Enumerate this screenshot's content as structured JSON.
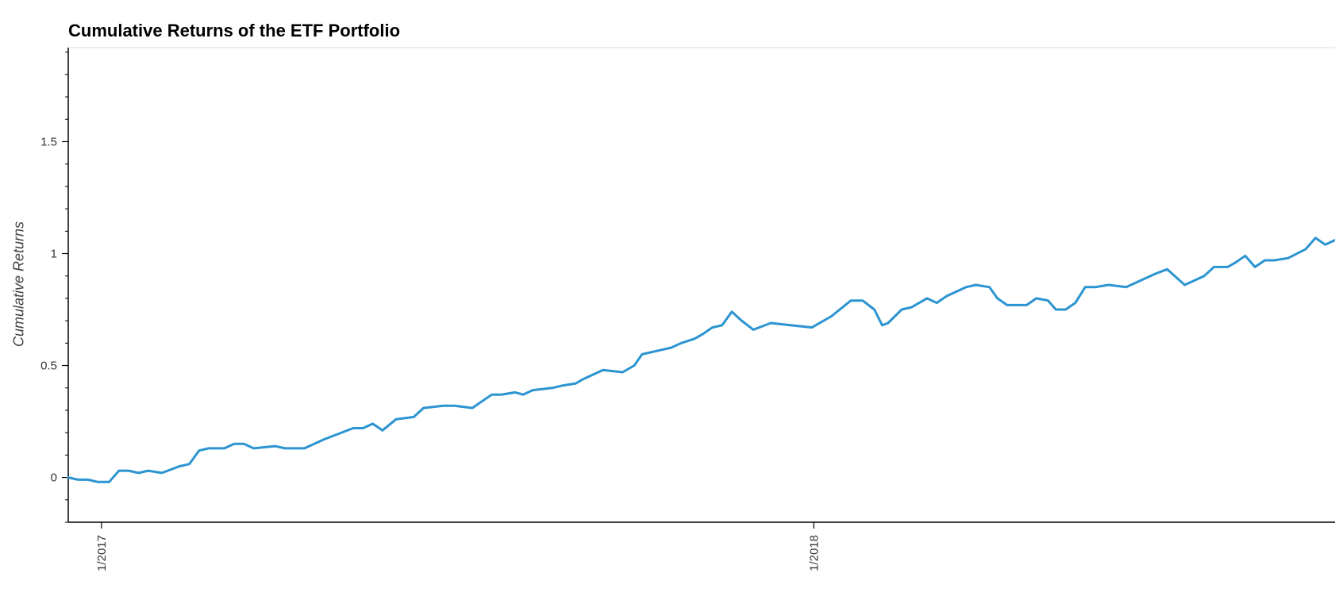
{
  "chart_data": {
    "type": "line",
    "title": "Cumulative Returns of the ETF Portfolio",
    "xlabel": "",
    "ylabel": "Cumulative Returns",
    "x_axis": {
      "type": "date",
      "range": [
        "2016-12-15",
        "2018-09-25"
      ],
      "ticks": [
        {
          "value": "2017-01-01",
          "label": "1/2017"
        },
        {
          "value": "2018-01-01",
          "label": "1/2018"
        }
      ]
    },
    "y_axis": {
      "range": [
        -0.2,
        1.92
      ],
      "ticks": [
        {
          "value": 0,
          "label": "0"
        },
        {
          "value": 0.5,
          "label": "0.5"
        },
        {
          "value": 1,
          "label": "1"
        },
        {
          "value": 1.5,
          "label": "1.5"
        }
      ],
      "minor_step": 0.1
    },
    "grid": false,
    "legend": "none",
    "colors": {
      "line": "#2b94d1",
      "axis": "#000000",
      "top_border": "#dddddd"
    },
    "series": [
      {
        "x": [
          "2016-12-15",
          "2016-12-20",
          "2016-12-25",
          "2016-12-30",
          "2017-01-05",
          "2017-01-10",
          "2017-01-15",
          "2017-01-20",
          "2017-01-25",
          "2017-02-01",
          "2017-02-10",
          "2017-02-15",
          "2017-02-20",
          "2017-02-25",
          "2017-03-01",
          "2017-03-05",
          "2017-03-10",
          "2017-03-15",
          "2017-03-20",
          "2017-03-31",
          "2017-04-05",
          "2017-04-15",
          "2017-04-25",
          "2017-05-01",
          "2017-05-10",
          "2017-05-15",
          "2017-05-20",
          "2017-05-25",
          "2017-06-01",
          "2017-06-10",
          "2017-06-15",
          "2017-06-25",
          "2017-07-01",
          "2017-07-10",
          "2017-07-20",
          "2017-07-25",
          "2017-08-01",
          "2017-08-05",
          "2017-08-10",
          "2017-08-20",
          "2017-08-25",
          "2017-09-01",
          "2017-09-05",
          "2017-09-15",
          "2017-09-25",
          "2017-10-01",
          "2017-10-05",
          "2017-10-15",
          "2017-10-20",
          "2017-10-25",
          "2017-11-01",
          "2017-11-05",
          "2017-11-10",
          "2017-11-15",
          "2017-11-20",
          "2017-11-25",
          "2017-12-01",
          "2017-12-10",
          "2017-12-20",
          "2017-12-31",
          "2018-01-10",
          "2018-01-20",
          "2018-01-26",
          "2018-02-01",
          "2018-02-05",
          "2018-02-08",
          "2018-02-15",
          "2018-02-20",
          "2018-02-28",
          "2018-03-05",
          "2018-03-10",
          "2018-03-20",
          "2018-03-25",
          "2018-04-01",
          "2018-04-05",
          "2018-04-10",
          "2018-04-20",
          "2018-04-25",
          "2018-05-01",
          "2018-05-05",
          "2018-05-10",
          "2018-05-15",
          "2018-05-20",
          "2018-05-25",
          "2018-06-01",
          "2018-06-10",
          "2018-06-20",
          "2018-06-25",
          "2018-07-01",
          "2018-07-10",
          "2018-07-20",
          "2018-07-25",
          "2018-08-01",
          "2018-08-05",
          "2018-08-10",
          "2018-08-15",
          "2018-08-20",
          "2018-08-25",
          "2018-09-01",
          "2018-09-10",
          "2018-09-15",
          "2018-09-20",
          "2018-09-25"
        ],
        "values": [
          0.0,
          -0.01,
          -0.01,
          -0.02,
          -0.02,
          0.03,
          0.03,
          0.02,
          0.03,
          0.02,
          0.05,
          0.06,
          0.12,
          0.13,
          0.13,
          0.13,
          0.15,
          0.15,
          0.13,
          0.14,
          0.13,
          0.13,
          0.17,
          0.19,
          0.22,
          0.22,
          0.24,
          0.21,
          0.26,
          0.27,
          0.31,
          0.32,
          0.32,
          0.31,
          0.37,
          0.37,
          0.38,
          0.37,
          0.39,
          0.4,
          0.41,
          0.42,
          0.44,
          0.48,
          0.47,
          0.5,
          0.55,
          0.57,
          0.58,
          0.6,
          0.62,
          0.64,
          0.67,
          0.68,
          0.74,
          0.7,
          0.66,
          0.69,
          0.68,
          0.67,
          0.72,
          0.79,
          0.79,
          0.75,
          0.68,
          0.69,
          0.75,
          0.76,
          0.8,
          0.78,
          0.81,
          0.85,
          0.86,
          0.85,
          0.8,
          0.77,
          0.77,
          0.8,
          0.79,
          0.75,
          0.75,
          0.78,
          0.85,
          0.85,
          0.86,
          0.85,
          0.89,
          0.91,
          0.93,
          0.86,
          0.9,
          0.94,
          0.94,
          0.96,
          0.99,
          0.94,
          0.97,
          0.97,
          0.98,
          1.02,
          1.07,
          1.04,
          1.06
        ]
      }
    ]
  }
}
